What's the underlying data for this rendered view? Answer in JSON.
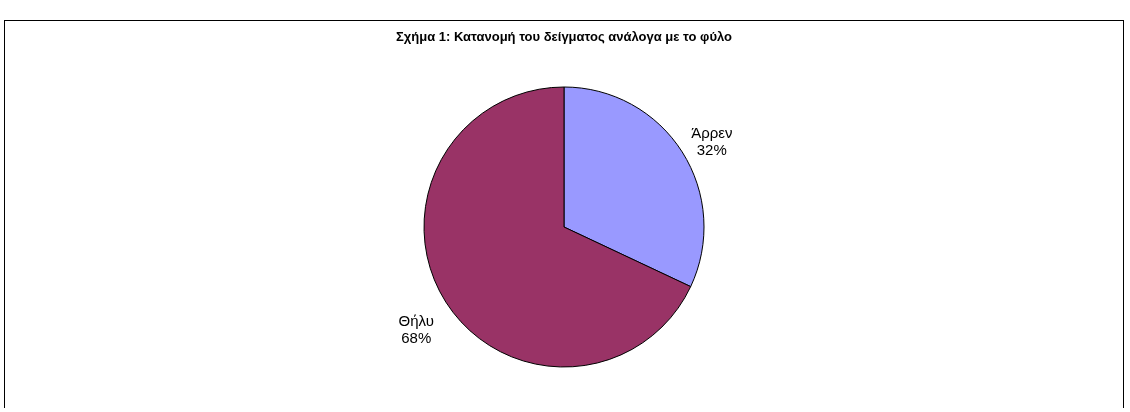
{
  "chart_data": {
    "type": "pie",
    "title": "Σχήμα 1: Κατανομή του δείγματος ανάλογα με το φύλο",
    "categories": [
      "Άρρεν",
      "Θήλυ"
    ],
    "values": [
      32,
      68
    ],
    "colors": [
      "#9999ff",
      "#993366"
    ],
    "value_labels": [
      "32%",
      "68%"
    ],
    "legend": false
  }
}
